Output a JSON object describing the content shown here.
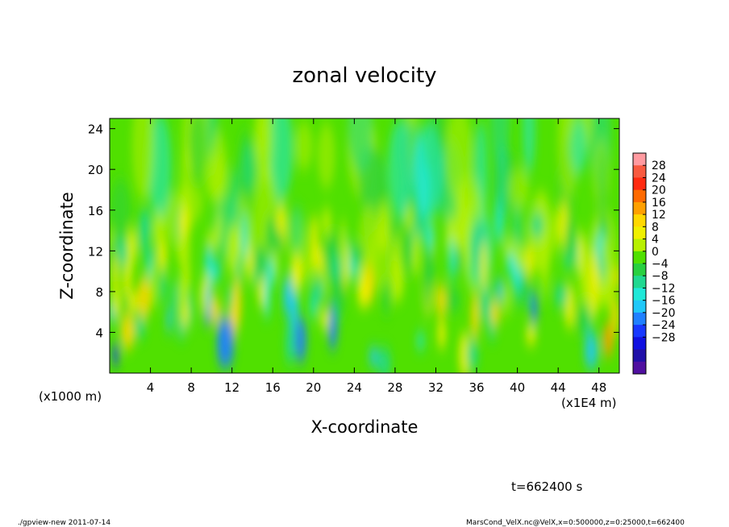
{
  "chart_data": {
    "type": "heatmap",
    "title": "zonal velocity",
    "xlabel": "X-coordinate",
    "ylabel": "Z-coordinate",
    "x_unit_left": "(x1000 m)",
    "x_unit_right": "(x1E4 m)",
    "x_ticks": [
      "4",
      "8",
      "12",
      "16",
      "20",
      "24",
      "28",
      "32",
      "36",
      "40",
      "44",
      "48"
    ],
    "y_ticks": [
      "4",
      "8",
      "12",
      "16",
      "20",
      "24"
    ],
    "xlim": [
      0,
      50
    ],
    "ylim": [
      0,
      25
    ],
    "colorbar": {
      "labels": [
        "28",
        "24",
        "20",
        "16",
        "12",
        "8",
        "4",
        "0",
        "-4",
        "-8",
        "-12",
        "-16",
        "-20",
        "-24",
        "-28"
      ],
      "colors": [
        "#ff9aa0",
        "#f85a40",
        "#ff2a10",
        "#ff6a00",
        "#ffa000",
        "#ffd800",
        "#f0f000",
        "#b8f000",
        "#50e000",
        "#28d040",
        "#20d890",
        "#20e8d8",
        "#20c8f8",
        "#2080ff",
        "#1838ff",
        "#1010e0",
        "#2010a8",
        "#5010a0"
      ]
    },
    "time_label": "t=662400 s"
  },
  "footer": {
    "left": "./gpview-new   2011-07-14",
    "right": "MarsCond_VelX.nc@VelX,x=0:500000,z=0:25000,t=662400"
  }
}
